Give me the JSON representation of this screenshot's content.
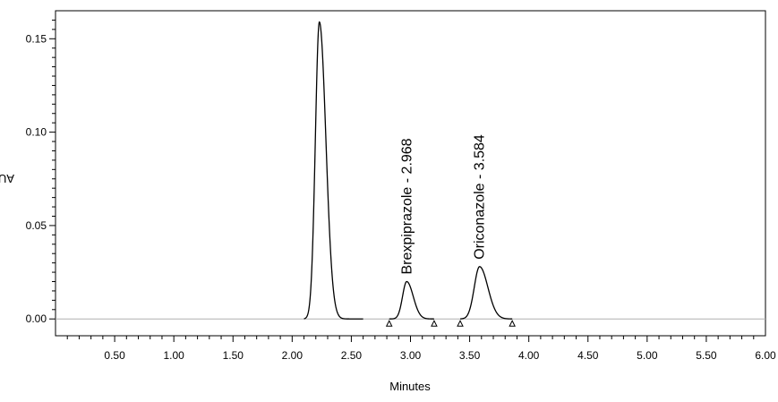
{
  "chart_data": {
    "type": "line",
    "title": "",
    "xlabel": "Minutes",
    "ylabel": "AU",
    "xlim": [
      0,
      6
    ],
    "ylim": [
      -0.009,
      0.165
    ],
    "x_ticks": [
      0.5,
      1.0,
      1.5,
      2.0,
      2.5,
      3.0,
      3.5,
      4.0,
      4.5,
      5.0,
      5.5,
      6.0
    ],
    "x_tick_labels": [
      "0.50",
      "1.00",
      "1.50",
      "2.00",
      "2.50",
      "3.00",
      "3.50",
      "4.00",
      "4.50",
      "5.00",
      "5.50",
      "6.00"
    ],
    "y_ticks": [
      0.0,
      0.05,
      0.1,
      0.15
    ],
    "y_tick_labels": [
      "0.00",
      "0.05",
      "0.10",
      "0.15"
    ],
    "grid": false,
    "baseline": 0.0,
    "peaks": [
      {
        "rt": 2.23,
        "height": 0.159,
        "sigma_left": 0.034,
        "sigma_right": 0.055,
        "label": ""
      },
      {
        "rt": 2.968,
        "height": 0.02,
        "sigma_left": 0.035,
        "sigma_right": 0.055,
        "label": "Brexpiprazole - 2.968"
      },
      {
        "rt": 3.584,
        "height": 0.028,
        "sigma_left": 0.045,
        "sigma_right": 0.07,
        "label": "Oriconazole - 3.584"
      }
    ],
    "integration_markers": [
      2.82,
      3.2,
      3.42,
      3.86
    ],
    "trace_segments": [
      [
        2.1,
        2.6
      ],
      [
        2.82,
        3.2
      ],
      [
        3.42,
        3.86
      ]
    ],
    "colors": {
      "trace": "#000000",
      "baseline": "#b0b0b0",
      "axis": "#000000"
    }
  }
}
